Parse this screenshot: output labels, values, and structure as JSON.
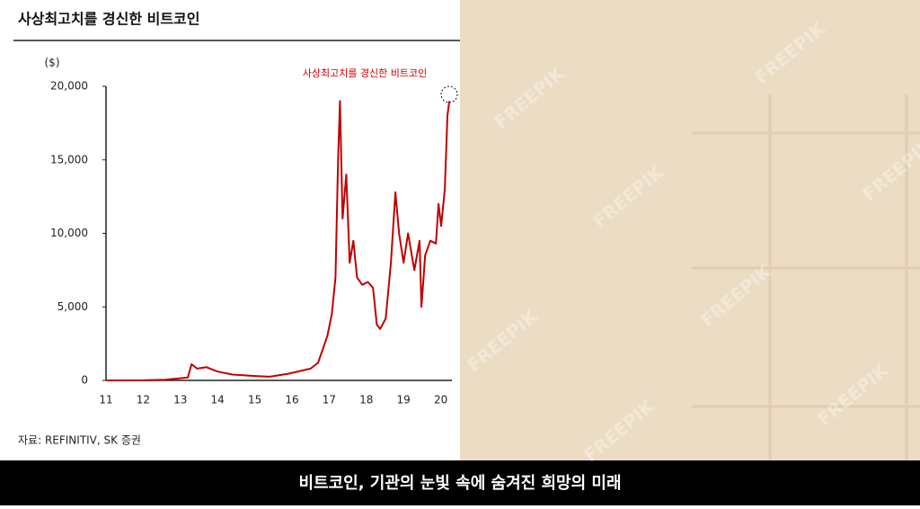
{
  "chart_data": {
    "type": "line",
    "title": "사상최고치를 경신한 비트코인",
    "y_unit": "($)",
    "annotation": "사상최고치를 경신한 비트코인",
    "source": "자료: REFINITIV, SK 증권",
    "xlim": [
      11,
      20.3
    ],
    "xticks": [
      11,
      12,
      13,
      14,
      15,
      16,
      17,
      18,
      19,
      20
    ],
    "ylim": [
      0,
      20000
    ],
    "yticks": [
      0,
      {
        "value": 5000,
        "label": "5,000"
      },
      {
        "value": 10000,
        "label": "10,000"
      },
      {
        "value": 15000,
        "label": "15,000"
      },
      {
        "value": 20000,
        "label": "20,000"
      }
    ],
    "grid": false,
    "x": [
      11,
      12,
      12.6,
      13.2,
      13.3,
      13.45,
      13.7,
      14.0,
      14.4,
      15.0,
      15.4,
      15.9,
      16.5,
      16.7,
      16.95,
      17.07,
      17.17,
      17.24,
      17.29,
      17.36,
      17.46,
      17.55,
      17.65,
      17.75,
      17.89,
      18.04,
      18.18,
      18.28,
      18.37,
      18.52,
      18.66,
      18.78,
      18.88,
      19.0,
      19.12,
      19.29,
      19.43,
      19.48,
      19.58,
      19.72,
      19.87,
      19.94,
      20.01,
      20.11,
      20.18,
      20.23
    ],
    "series": [
      {
        "name": "Bitcoin",
        "color": "#c00000",
        "values": [
          0,
          5,
          50,
          200,
          1100,
          800,
          900,
          600,
          400,
          300,
          250,
          450,
          800,
          1200,
          3000,
          4500,
          7000,
          15000,
          19000,
          11000,
          14000,
          8000,
          9500,
          7000,
          6500,
          6700,
          6300,
          3800,
          3500,
          4200,
          8000,
          12800,
          10000,
          8000,
          10000,
          7500,
          9500,
          5000,
          8500,
          9500,
          9300,
          12000,
          10500,
          13000,
          18000,
          19000
        ]
      }
    ]
  },
  "watermark": "FREEPIK",
  "caption": "비트코인, 기관의 눈빛 속에 숨겨진 희망의 미래"
}
